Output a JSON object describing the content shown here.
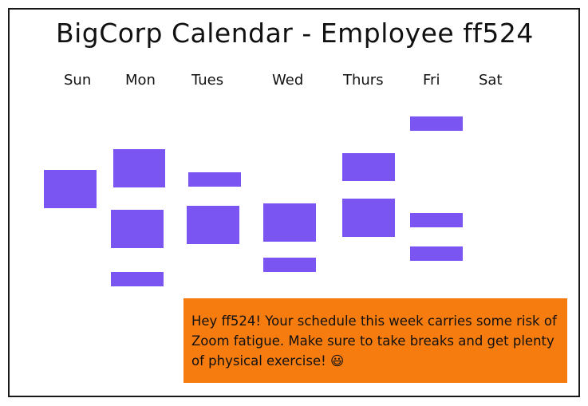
{
  "header": {
    "title": "BigCorp Calendar - Employee ff524"
  },
  "days": [
    "Sun",
    "Mon",
    "Tues",
    "Wed",
    "Thurs",
    "Fri",
    "Sat"
  ],
  "colors": {
    "event": "#7b55f2",
    "note_background": "#f77c10",
    "frame_border": "#1a1a1a"
  },
  "note": {
    "text": "Hey ff524! Your schedule this week carries some risk of Zoom fatigue. Make sure to take breaks and get plenty of physical exercise! 😃"
  }
}
